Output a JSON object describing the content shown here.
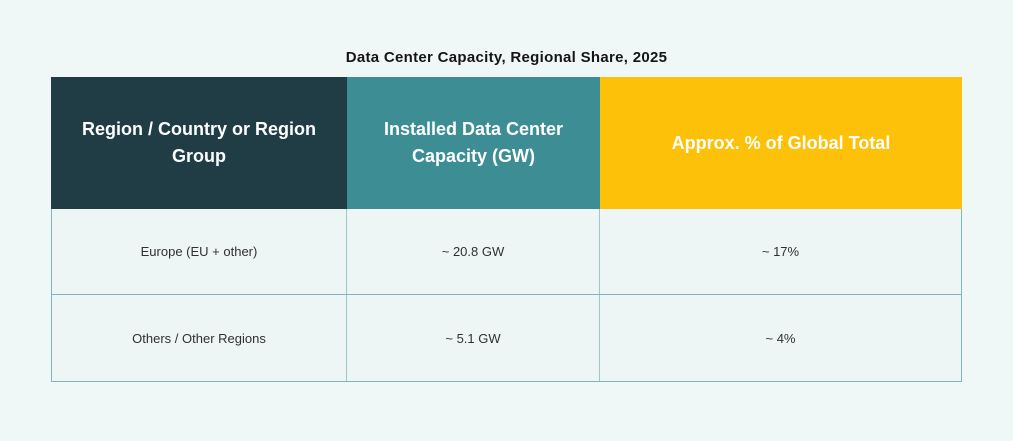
{
  "title": "Data Center Capacity, Regional Share, 2025",
  "colors": {
    "page_background": "#f0f8f7",
    "header_region_bg": "#203c44",
    "header_capacity_bg": "#3d8d95",
    "header_share_bg": "#fdc10a",
    "header_text": "#ffffff",
    "row_background": "#edf6f5",
    "table_border": "#7db6bc"
  },
  "table": {
    "columns": [
      {
        "label": "Region / Country or Region Group"
      },
      {
        "label": "Installed Data Center Capacity (GW)"
      },
      {
        "label": "Approx. % of Global Total"
      }
    ],
    "rows": [
      {
        "region": "Europe (EU + other)",
        "capacity": "~ 20.8 GW",
        "share": "~ 17%"
      },
      {
        "region": "Others / Other Regions",
        "capacity": "~ 5.1 GW",
        "share": "~ 4%"
      }
    ]
  },
  "chart_data": {
    "type": "table",
    "title": "Data Center Capacity, Regional Share, 2025",
    "columns": [
      "Region / Country or Region Group",
      "Installed Data Center Capacity (GW)",
      "Approx. % of Global Total"
    ],
    "rows": [
      [
        "Europe (EU + other)",
        "~ 20.8 GW",
        "~ 17%"
      ],
      [
        "Others / Other Regions",
        "~ 5.1 GW",
        "~ 4%"
      ]
    ],
    "capacity_gw": [
      20.8,
      5.1
    ],
    "share_pct_of_global": [
      17,
      4
    ]
  }
}
